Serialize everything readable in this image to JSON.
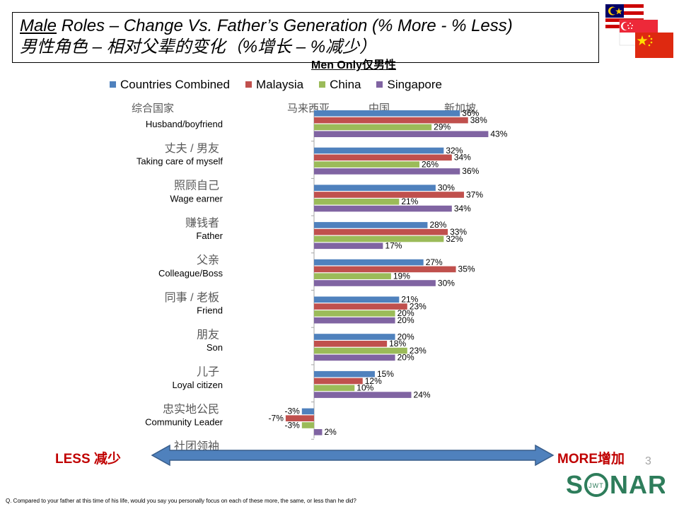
{
  "title": {
    "en_underlined": "Male",
    "en_rest": " Roles – Change Vs. Father’s Generation (% More - % Less)",
    "zh": "男性角色 – 相对父辈的变化（%增长 – %减少）"
  },
  "subtitle": "Men Only仅男性",
  "legend_zh": [
    "综合国家",
    "马来西亚",
    "中国",
    "新加坡"
  ],
  "colors": {
    "Countries Combined": "#4f81bd",
    "Malaysia": "#c0504d",
    "China": "#9bbb59",
    "Singapore": "#8064a2",
    "axis": "#a6a6a6",
    "arrow": "#4f81bd",
    "accent": "#c00000"
  },
  "chart_data": {
    "type": "bar",
    "orientation": "horizontal",
    "unit": "%",
    "categories": [
      "Husband/boyfriend",
      "Taking care of myself",
      "Wage earner",
      "Father",
      "Colleague/Boss",
      "Friend",
      "Son",
      "Loyal citizen",
      "Community Leader"
    ],
    "categories_zh": [
      "丈夫 / 男友",
      "照顾自己",
      "赚钱者",
      "父亲",
      "同事 / 老板",
      "朋友",
      "儿子",
      "忠实地公民",
      "社团领袖"
    ],
    "series": [
      {
        "name": "Countries Combined",
        "values": [
          36,
          32,
          30,
          28,
          27,
          21,
          20,
          15,
          -3
        ]
      },
      {
        "name": "Malaysia",
        "values": [
          38,
          34,
          37,
          33,
          35,
          23,
          18,
          12,
          -7
        ]
      },
      {
        "name": "China",
        "values": [
          29,
          26,
          21,
          32,
          19,
          20,
          23,
          10,
          -3
        ]
      },
      {
        "name": "Singapore",
        "values": [
          43,
          36,
          34,
          17,
          30,
          20,
          20,
          24,
          2
        ]
      }
    ],
    "xlim": [
      -10,
      45
    ],
    "legend_position": "top"
  },
  "arrow": {
    "less_label": "LESS 减少",
    "more_label": "MORE增加"
  },
  "page_number": "3",
  "logo": {
    "text": "SONAR",
    "inner": "JWT"
  },
  "footnote": "Q. Compared to your father at this time of his life, would you say you personally focus on each of these more, the same, or less than he did?"
}
